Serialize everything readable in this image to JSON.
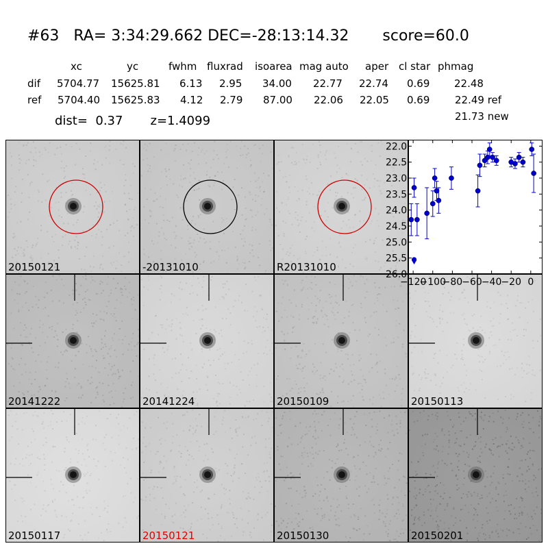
{
  "header": {
    "title": "#63   RA= 3:34:29.662 DEC=-28:13:14.32       score=60.0",
    "columns": [
      "xc",
      "yc",
      "fwhm",
      "fluxrad",
      "isoarea",
      "mag auto",
      "aper",
      "cl star",
      "phmag"
    ],
    "dif": {
      "label": "dif",
      "values": [
        "5704.77",
        "15625.81",
        "6.13",
        "2.95",
        "34.00",
        "22.77",
        "22.74",
        "0.69",
        "22.48"
      ]
    },
    "ref": {
      "label": "ref",
      "values": [
        "5704.40",
        "15625.83",
        "4.12",
        "2.79",
        "87.00",
        "22.06",
        "22.05",
        "0.69",
        "22.49 ref"
      ]
    },
    "new_mag": "21.73 new",
    "dist_line": "dist=  0.37       z=1.4099"
  },
  "panels": [
    {
      "label": "20150121",
      "marker": "circle",
      "circle_color": "#cc0000",
      "tone": 0.18
    },
    {
      "label": "-20131010",
      "marker": "circle",
      "circle_color": "#000000",
      "tone": 0.22
    },
    {
      "label": "R20131010",
      "marker": "circle",
      "circle_color": "#cc0000",
      "tone": 0.15
    },
    {
      "label": "20141222",
      "marker": "cross",
      "tone": 0.3
    },
    {
      "label": "20141224",
      "marker": "cross",
      "tone": 0.12
    },
    {
      "label": "20150109",
      "marker": "cross",
      "tone": 0.25
    },
    {
      "label": "20150113",
      "marker": "cross",
      "tone": 0.1
    },
    {
      "label": "20150117",
      "marker": "cross",
      "tone": 0.08
    },
    {
      "label": "20150121",
      "marker": "cross",
      "tone": 0.18,
      "highlight": "#e00000"
    },
    {
      "label": "20150130",
      "marker": "cross",
      "tone": 0.35
    },
    {
      "label": "20150201",
      "marker": "cross",
      "tone": 0.55
    }
  ],
  "chart_data": {
    "type": "scatter",
    "series_color": "#0000cc",
    "xlim": [
      -125,
      12
    ],
    "ylim": [
      26.0,
      21.8
    ],
    "x_ticks": [
      -120,
      -100,
      -80,
      -60,
      -40,
      -20,
      0
    ],
    "x_tick_labels": [
      "−120",
      "−100",
      "−80",
      "−60",
      "−40",
      "−20",
      "0"
    ],
    "y_ticks": [
      22.0,
      22.5,
      23.0,
      23.5,
      24.0,
      24.5,
      25.0,
      25.5,
      26.0
    ],
    "y_tick_labels": [
      "22.0",
      "22.5",
      "23.0",
      "23.5",
      "24.0",
      "24.5",
      "25.0",
      "25.5",
      "26.0"
    ],
    "points": [
      {
        "x": -122,
        "y": 24.3,
        "err": 0.5
      },
      {
        "x": -119,
        "y": 23.3,
        "err": 0.3
      },
      {
        "x": -116,
        "y": 24.3,
        "err": 0.5
      },
      {
        "x": -106,
        "y": 24.1,
        "err": 0.8
      },
      {
        "x": -100,
        "y": 23.8,
        "err": 0.4
      },
      {
        "x": -98,
        "y": 23.0,
        "err": 0.3
      },
      {
        "x": -96,
        "y": 23.4,
        "err": 0.3
      },
      {
        "x": -94,
        "y": 23.7,
        "err": 0.4
      },
      {
        "x": -81,
        "y": 23.0,
        "err": 0.35
      },
      {
        "x": -54,
        "y": 23.4,
        "err": 0.5
      },
      {
        "x": -52,
        "y": 22.6,
        "err": 0.35
      },
      {
        "x": -47,
        "y": 22.45,
        "err": 0.2
      },
      {
        "x": -44,
        "y": 22.35,
        "err": 0.2
      },
      {
        "x": -42,
        "y": 22.1,
        "err": 0.2
      },
      {
        "x": -39,
        "y": 22.35,
        "err": 0.15
      },
      {
        "x": -35,
        "y": 22.45,
        "err": 0.15
      },
      {
        "x": -20,
        "y": 22.5,
        "err": 0.15
      },
      {
        "x": -16,
        "y": 22.55,
        "err": 0.15
      },
      {
        "x": -12,
        "y": 22.35,
        "err": 0.15
      },
      {
        "x": -8,
        "y": 22.5,
        "err": 0.15
      },
      {
        "x": 1,
        "y": 22.1,
        "err": 0.2
      },
      {
        "x": 3,
        "y": 22.85,
        "err": 0.6
      }
    ],
    "upper_limits": [
      {
        "x": -119,
        "y": 25.55
      }
    ]
  }
}
